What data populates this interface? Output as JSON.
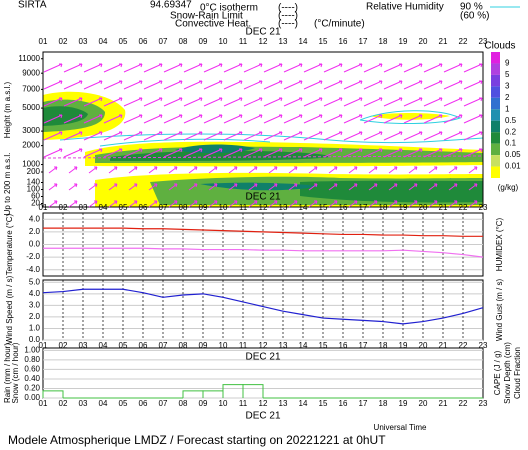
{
  "header": {
    "station": "SIRTA",
    "coord": "94.69347",
    "legend_iso": "0°C isotherm",
    "legend_iso_key": "(----)",
    "legend_snow": "Snow-Rain Limit",
    "legend_snow_key": "(----)",
    "legend_conv": "Convective Heat.",
    "legend_conv_key": "(----)",
    "legend_conv_unit": "(°C/minute)",
    "legend_rh": "Relative Humidity",
    "legend_rh_90": "90 %",
    "legend_rh_60": "(60 %)"
  },
  "footer": {
    "time_label": "Universal Time",
    "title": "Modele Atmospherique LMDZ / Forecast starting on 20221221 at 0hUT"
  },
  "chart_data": [
    {
      "type": "contour",
      "date_label": "DEC 21",
      "xlim": [
        1,
        23
      ],
      "xticks": [
        {
          "value": 1,
          "label": "01"
        },
        {
          "value": 2,
          "label": "02"
        },
        {
          "value": 3,
          "label": "03"
        },
        {
          "value": 4,
          "label": "04"
        },
        {
          "value": 5,
          "label": "05"
        },
        {
          "value": 6,
          "label": "06"
        },
        {
          "value": 7,
          "label": "07"
        },
        {
          "value": 8,
          "label": "08"
        },
        {
          "value": 9,
          "label": "09"
        },
        {
          "value": 10,
          "label": "10"
        },
        {
          "value": 11,
          "label": "11"
        },
        {
          "value": 12,
          "label": "12"
        },
        {
          "value": 13,
          "label": "13"
        },
        {
          "value": 14,
          "label": "14"
        },
        {
          "value": 15,
          "label": "15"
        },
        {
          "value": 16,
          "label": "16"
        },
        {
          "value": 17,
          "label": "17"
        },
        {
          "value": 18,
          "label": "18"
        },
        {
          "value": 19,
          "label": "19"
        },
        {
          "value": 20,
          "label": "20"
        },
        {
          "value": 21,
          "label": "21"
        },
        {
          "value": 22,
          "label": "22"
        },
        {
          "value": 23,
          "label": "23"
        }
      ],
      "ylabel": "Height (m a.s.l.)",
      "ylabel2": "Up to 200 m a.s.l.",
      "yscale": "sqrt",
      "ylim": [
        700,
        12000
      ],
      "yticks": [
        11000,
        9000,
        7000,
        5000,
        3000,
        2000,
        1000
      ],
      "y2lim": [
        0,
        200
      ],
      "y2ticks": [
        200,
        140,
        100,
        60,
        20
      ],
      "colorbar_title": "Clouds",
      "colorbar_unit": "(g/kg)",
      "colorbar_ticks": [
        9,
        5,
        3,
        2,
        1,
        0.5,
        0.2,
        0.1,
        0.05,
        0.01
      ],
      "colorbar_colors": [
        "#e020e0",
        "#b040e0",
        "#7a3fe0",
        "#5050e0",
        "#3070d0",
        "#2090b0",
        "#10806a",
        "#1f8a3a",
        "#5fb040",
        "#c8e060",
        "#ffff00"
      ]
    },
    {
      "type": "line",
      "ylabel": "Temperature (°C)",
      "y2label": "HUMIDEX (°C)",
      "x": [
        1,
        2,
        3,
        4,
        5,
        6,
        7,
        8,
        9,
        10,
        11,
        12,
        13,
        14,
        15,
        16,
        17,
        18,
        19,
        20,
        21,
        22,
        23
      ],
      "xlim": [
        1,
        23
      ],
      "ylim": [
        -5,
        5
      ],
      "yticks": [
        {
          "value": 4,
          "label": "4.0"
        },
        {
          "value": 2,
          "label": "2.0"
        },
        {
          "value": 0,
          "label": "0.0"
        },
        {
          "value": -2,
          "label": "-2.0"
        },
        {
          "value": -4,
          "label": "-4.0"
        }
      ],
      "series": [
        {
          "color": "#e02010",
          "values": [
            2.6,
            2.6,
            2.6,
            2.6,
            2.6,
            2.5,
            2.5,
            2.4,
            2.3,
            2.2,
            2.1,
            2.0,
            1.9,
            1.8,
            1.7,
            1.6,
            1.6,
            1.5,
            1.5,
            1.4,
            1.4,
            1.3,
            1.3
          ]
        },
        {
          "color": "#f070f0",
          "values": [
            -0.6,
            -0.6,
            -0.6,
            -0.6,
            -0.6,
            -0.6,
            -0.7,
            -0.7,
            -0.8,
            -0.8,
            -0.8,
            -0.9,
            -0.9,
            -1.0,
            -1.0,
            -1.0,
            -1.0,
            -1.0,
            -0.9,
            -1.1,
            -1.3,
            -1.6,
            -2.0
          ]
        }
      ]
    },
    {
      "type": "line",
      "ylabel": "Wind Speed (m / s)",
      "y2label": "Wind Gust (m / s)",
      "x": [
        1,
        2,
        3,
        4,
        5,
        6,
        7,
        8,
        9,
        10,
        11,
        12,
        13,
        14,
        15,
        16,
        17,
        18,
        19,
        20,
        21,
        22,
        23
      ],
      "xlim": [
        1,
        23
      ],
      "ylim": [
        0,
        5.2
      ],
      "yticks": [
        {
          "value": 5,
          "label": "5.0"
        },
        {
          "value": 4,
          "label": "4.0"
        },
        {
          "value": 3,
          "label": "3.0"
        },
        {
          "value": 2,
          "label": "2.0"
        },
        {
          "value": 1,
          "label": "1.0"
        },
        {
          "value": 0,
          "label": "0.0"
        }
      ],
      "series": [
        {
          "color": "#2020d0",
          "values": [
            4.1,
            4.2,
            4.4,
            4.4,
            4.4,
            4.1,
            3.7,
            3.9,
            4.0,
            3.7,
            3.3,
            2.9,
            2.5,
            2.2,
            1.9,
            1.8,
            1.7,
            1.6,
            1.4,
            1.6,
            1.9,
            2.3,
            2.8
          ]
        }
      ]
    },
    {
      "type": "step",
      "ylabel": "Rain (mm / hour)",
      "ylabel_b": "Snow (cm / hour)",
      "y2label": "CAPE (J / g)",
      "y2label_b": "Snow Depth (cm)",
      "y2label_c": "Cloud Fraction",
      "x": [
        1,
        2,
        3,
        4,
        5,
        6,
        7,
        8,
        9,
        10,
        11,
        12,
        13,
        14,
        15,
        16,
        17,
        18,
        19,
        20,
        21,
        22,
        23
      ],
      "xlim": [
        1,
        23
      ],
      "ylim": [
        0,
        1.05
      ],
      "yticks": [
        {
          "value": 1,
          "label": "1.00"
        },
        {
          "value": 0.8,
          "label": "0.80"
        },
        {
          "value": 0.6,
          "label": "0.60"
        },
        {
          "value": 0.4,
          "label": "0.40"
        },
        {
          "value": 0.2,
          "label": "0.20"
        },
        {
          "value": 0,
          "label": "0.00"
        }
      ],
      "series": [
        {
          "color": "#40c040",
          "values": [
            0.15,
            0,
            0,
            0,
            0,
            0,
            0,
            0.15,
            0.15,
            0.28,
            0.28,
            0,
            0,
            0,
            0,
            0,
            0,
            0,
            0,
            0,
            0,
            0,
            0
          ]
        }
      ]
    }
  ]
}
